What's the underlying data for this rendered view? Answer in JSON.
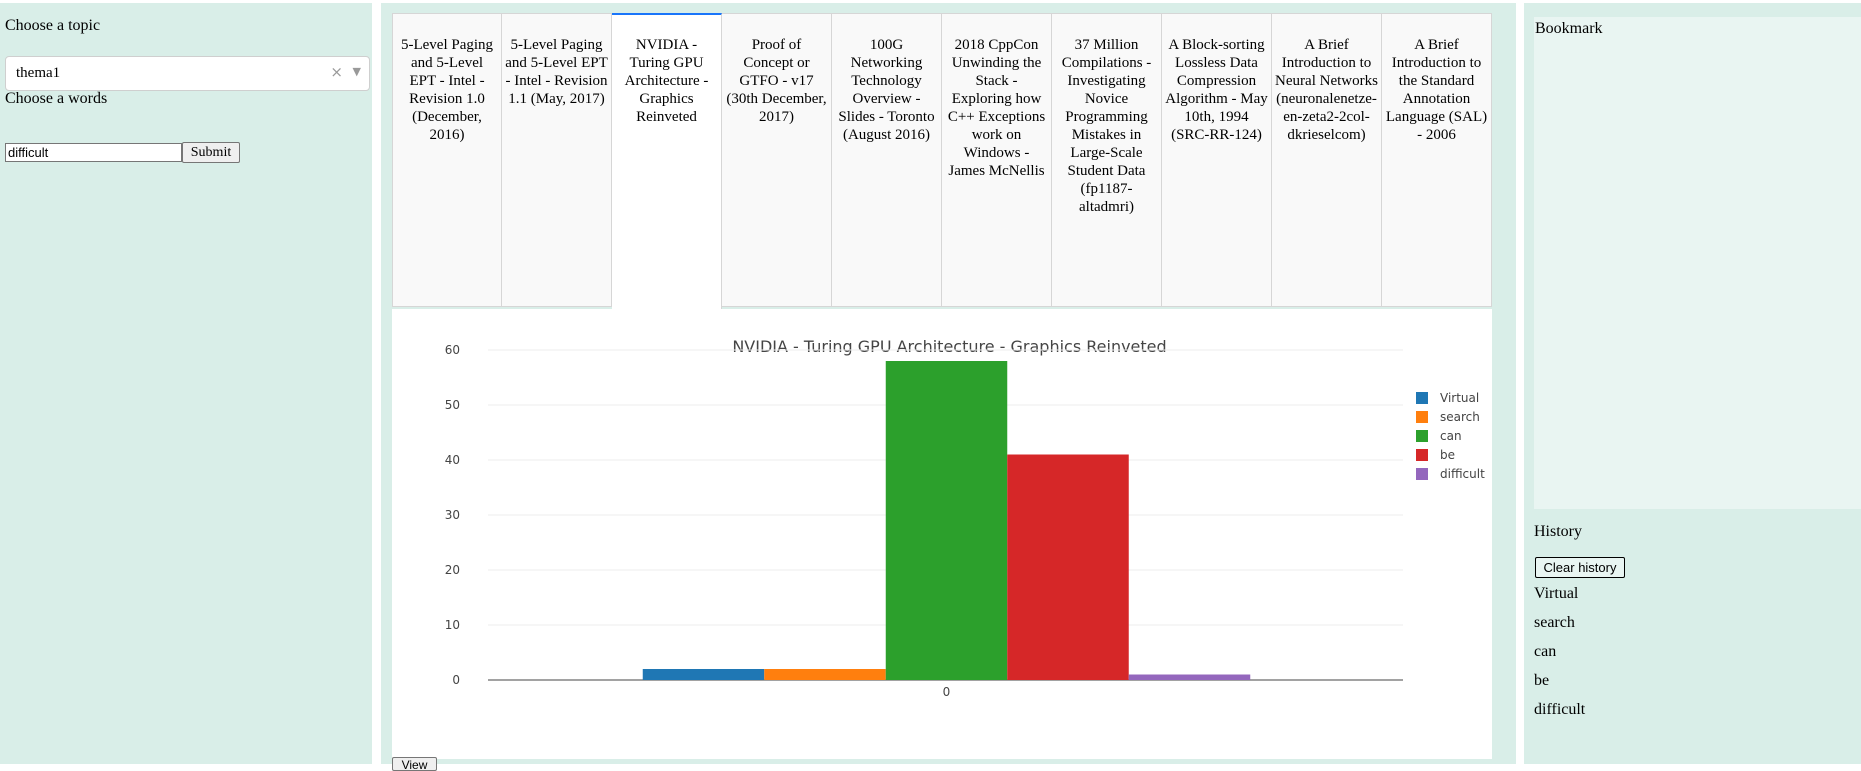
{
  "sidebar": {
    "topic_label": "Choose a topic",
    "topic_value": "thema1",
    "clear_glyph": "×",
    "caret_glyph": "▼",
    "words_label": "Choose a words",
    "word_value": "difficult",
    "submit_label": "Submit"
  },
  "tabs": [
    "5-Level Paging and 5-Level EPT - Intel - Revision 1.0 (December, 2016)",
    "5-Level Paging and 5-Level EPT - Intel - Revision 1.1 (May, 2017)",
    "NVIDIA - Turing GPU Architecture - Graphics Reinveted",
    "Proof of Concept or GTFO - v17 (30th December, 2017)",
    "100G Networking Technology Overview - Slides - Toronto (August 2016)",
    "2018 CppCon Unwinding the Stack - Exploring how C++ Exceptions work on Windows - James McNellis",
    "37 Million Compilations - Investigating Novice Programming Mistakes in Large-Scale Student Data (fp1187-altadmri)",
    "A Block-sorting Lossless Data Compression Algorithm - May 10th, 1994 (SRC-RR-124)",
    "A Brief Introduction to Neural Networks (neuronalenetze-en-zeta2-2col-dkrieselcom)",
    "A Brief Introduction to the Standard Annotation Language (SAL) - 2006"
  ],
  "active_tab": 2,
  "chart_data": {
    "type": "bar",
    "title": "NVIDIA - Turing GPU Architecture - Graphics Reinveted",
    "categories": [
      "0"
    ],
    "series": [
      {
        "name": "Virtual",
        "values": [
          2
        ],
        "color": "#1f77b4"
      },
      {
        "name": "search",
        "values": [
          2
        ],
        "color": "#ff7f0e"
      },
      {
        "name": "can",
        "values": [
          58
        ],
        "color": "#2ca02c"
      },
      {
        "name": "be",
        "values": [
          41
        ],
        "color": "#d62728"
      },
      {
        "name": "difficult",
        "values": [
          1
        ],
        "color": "#9467bd"
      }
    ],
    "ylim": [
      0,
      62
    ],
    "yticks": [
      0,
      10,
      20,
      30,
      40,
      50,
      60
    ],
    "grid": true,
    "legend": "top-right"
  },
  "view_label": "View",
  "right": {
    "bookmark_title": "Bookmark",
    "history_title": "History",
    "clear_label": "Clear history",
    "history_items": [
      "Virtual",
      "search",
      "can",
      "be",
      "difficult"
    ]
  }
}
